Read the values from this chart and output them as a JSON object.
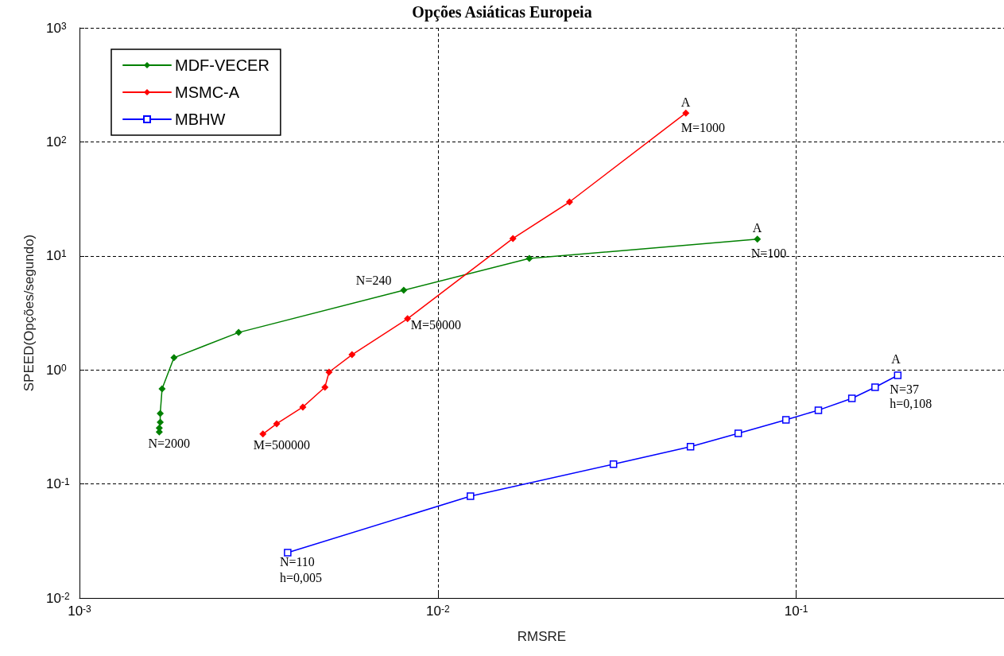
{
  "chart_data": {
    "type": "line",
    "title": "Opções Asiáticas Europeia",
    "xlabel": "RMSRE",
    "ylabel": "SPEED(Opções/segundo)",
    "log": "xy",
    "grid": true,
    "legend": "top left",
    "line_style": "solid",
    "xlim": [
      0.001,
      0.38
    ],
    "ylim": [
      0.01,
      1000
    ],
    "xticks": [
      {
        "value": 0.001,
        "label": "10$^{-3}$"
      },
      {
        "value": 0.01,
        "label": "10$^{-2}$"
      },
      {
        "value": 0.1,
        "label": "10$^{-1}$"
      }
    ],
    "yticks": [
      {
        "value": 0.01,
        "label": "10$^{-2}$"
      },
      {
        "value": 0.1,
        "label": "10$^{-1}$"
      },
      {
        "value": 1,
        "label": "10$^{0}$"
      },
      {
        "value": 10,
        "label": "10$^{1}$"
      },
      {
        "value": 100,
        "label": "10$^{2}$"
      },
      {
        "value": 1000,
        "label": "10$^{3}$"
      }
    ],
    "series": [
      {
        "name": "MDF-VECER",
        "color": "#008000",
        "marker": "diamond",
        "x": [
          0.00167,
          0.00167,
          0.00168,
          0.00168,
          0.0017,
          0.001835,
          0.00278,
          0.00803,
          0.018,
          0.0779
        ],
        "values": [
          0.286,
          0.31,
          0.348,
          0.415,
          0.683,
          1.28,
          2.13,
          5.0,
          9.5,
          14.0
        ]
      },
      {
        "name": "MSMC-A",
        "color": "#ff0000",
        "marker": "diamond",
        "x": [
          0.00325,
          0.00355,
          0.0042,
          0.00484,
          0.00497,
          0.00576,
          0.00823,
          0.0162,
          0.0233,
          0.0492
        ],
        "values": [
          0.274,
          0.337,
          0.472,
          0.705,
          0.956,
          1.36,
          2.81,
          14.2,
          29.7,
          179
        ]
      },
      {
        "name": "MBHW",
        "color": "#0000ff",
        "marker": "square",
        "x": [
          0.00381,
          0.01233,
          0.0309,
          0.0507,
          0.0689,
          0.0936,
          0.1153,
          0.143,
          0.166,
          0.192
        ],
        "values": [
          0.025,
          0.0781,
          0.149,
          0.212,
          0.278,
          0.365,
          0.443,
          0.563,
          0.705,
          0.897
        ]
      }
    ],
    "annotations": [
      {
        "text": "A",
        "x": 0.0492,
        "y": 179
      },
      {
        "text": "M=1000",
        "x": 0.0492,
        "y": 179
      },
      {
        "text": "A",
        "x": 0.0779,
        "y": 14.0
      },
      {
        "text": "N=100",
        "x": 0.0779,
        "y": 14.0
      },
      {
        "text": "N=240",
        "x": 0.00803,
        "y": 5.0
      },
      {
        "text": "M=50000",
        "x": 0.00823,
        "y": 2.81
      },
      {
        "text": "N=2000",
        "x": 0.00167,
        "y": 0.286
      },
      {
        "text": "M=500000",
        "x": 0.00325,
        "y": 0.274
      },
      {
        "text": "A",
        "x": 0.192,
        "y": 0.897
      },
      {
        "text": "N=37",
        "x": 0.192,
        "y": 0.897
      },
      {
        "text": "h=0,108",
        "x": 0.192,
        "y": 0.897
      },
      {
        "text": "N=110",
        "x": 0.00381,
        "y": 0.025
      },
      {
        "text": "h=0,005",
        "x": 0.00381,
        "y": 0.025
      }
    ]
  }
}
